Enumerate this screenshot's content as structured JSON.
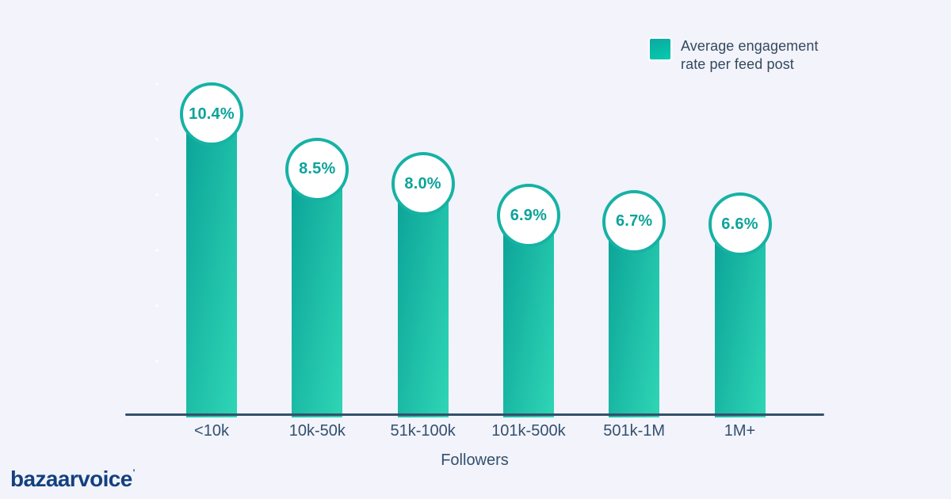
{
  "chart_data": {
    "type": "bar",
    "title": "",
    "categories": [
      "<10k",
      "10k-50k",
      "51k-100k",
      "101k-500k",
      "501k-1M",
      "1M+"
    ],
    "values": [
      10.4,
      8.5,
      8.0,
      6.9,
      6.7,
      6.6
    ],
    "value_labels": [
      "10.4%",
      "8.5%",
      "8.0%",
      "6.9%",
      "6.7%",
      "6.6%"
    ],
    "xlabel": "Followers",
    "ylabel": "",
    "ylim": [
      0,
      11
    ],
    "grid": false,
    "legend": {
      "label": "Average engagement rate per feed post",
      "position": "top-right"
    },
    "bar_gradient": [
      "#0ba398",
      "#2fd6b5"
    ],
    "marker_style": "circle-badge"
  },
  "branding": {
    "logo_text": "bazaarvoice",
    "trademark_mark": "'"
  },
  "colors": {
    "background": "#f2f3fb",
    "axis": "#33506b",
    "label_text": "#33506e",
    "bubble_text": "#0ca39a",
    "bubble_border": "#16b2a4",
    "legend_text": "#34495e",
    "logo": "#15407f"
  }
}
